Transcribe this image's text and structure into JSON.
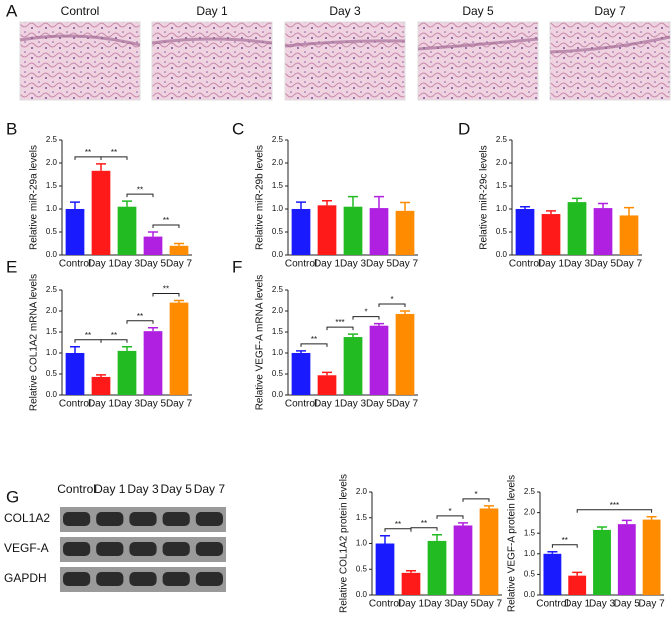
{
  "panel_labels": [
    "A",
    "B",
    "C",
    "D",
    "E",
    "F",
    "G"
  ],
  "histology": {
    "labels": [
      "Control",
      "Day 1",
      "Day 3",
      "Day 5",
      "Day 7"
    ]
  },
  "blot": {
    "header": [
      "Control",
      "Day 1",
      "Day 3",
      "Day 5",
      "Day 7"
    ],
    "rows": [
      "COL1A2",
      "VEGF-A",
      "GAPDH"
    ]
  },
  "chart_data": [
    {
      "type": "bar",
      "y_label": "Relative miR-29a levels",
      "categories": [
        "Control",
        "Day 1",
        "Day 3",
        "Day 5",
        "Day 7"
      ],
      "values": [
        1.0,
        1.83,
        1.05,
        0.4,
        0.2
      ],
      "errors": [
        0.15,
        0.15,
        0.12,
        0.1,
        0.05
      ],
      "colors": [
        "#1a1aff",
        "#ff1a1a",
        "#22bb22",
        "#b020e0",
        "#ff8c00"
      ],
      "ylim": [
        0,
        2.5
      ],
      "yticks": [
        {
          "value": 0,
          "label": "0.0"
        },
        {
          "value": 0.5,
          "label": "0.5"
        },
        {
          "value": 1,
          "label": "1.0"
        },
        {
          "value": 1.5,
          "label": "1.5"
        },
        {
          "value": 2,
          "label": "2.0"
        },
        {
          "value": 2.5,
          "label": "2.5"
        }
      ],
      "brackets": [
        {
          "between": [
            0,
            1
          ],
          "label": "**"
        },
        {
          "between": [
            1,
            2
          ],
          "label": "**"
        },
        {
          "between": [
            2,
            3
          ],
          "label": "**"
        },
        {
          "between": [
            3,
            4
          ],
          "label": "**"
        }
      ]
    },
    {
      "type": "bar",
      "y_label": "Relative miR-29b levels",
      "categories": [
        "Control",
        "Day 1",
        "Day 3",
        "Day 5",
        "Day 7"
      ],
      "values": [
        1.0,
        1.08,
        1.05,
        1.02,
        0.96
      ],
      "errors": [
        0.15,
        0.1,
        0.22,
        0.25,
        0.18
      ],
      "colors": [
        "#1a1aff",
        "#ff1a1a",
        "#22bb22",
        "#b020e0",
        "#ff8c00"
      ],
      "ylim": [
        0,
        2.5
      ],
      "yticks": [
        {
          "value": 0,
          "label": "0.0"
        },
        {
          "value": 0.5,
          "label": "0.5"
        },
        {
          "value": 1,
          "label": "1.0"
        },
        {
          "value": 1.5,
          "label": "1.5"
        },
        {
          "value": 2,
          "label": "2.0"
        },
        {
          "value": 2.5,
          "label": "2.5"
        }
      ],
      "brackets": []
    },
    {
      "type": "bar",
      "y_label": "Relative miR-29c levels",
      "categories": [
        "Control",
        "Day 1",
        "Day 3",
        "Day 5",
        "Day 7"
      ],
      "values": [
        1.0,
        0.89,
        1.15,
        1.02,
        0.86
      ],
      "errors": [
        0.05,
        0.07,
        0.08,
        0.1,
        0.17
      ],
      "colors": [
        "#1a1aff",
        "#ff1a1a",
        "#22bb22",
        "#b020e0",
        "#ff8c00"
      ],
      "ylim": [
        0,
        2.5
      ],
      "yticks": [
        {
          "value": 0,
          "label": "0.0"
        },
        {
          "value": 0.5,
          "label": "0.5"
        },
        {
          "value": 1,
          "label": "1.0"
        },
        {
          "value": 1.5,
          "label": "1.5"
        },
        {
          "value": 2,
          "label": "2.0"
        },
        {
          "value": 2.5,
          "label": "2.5"
        }
      ],
      "brackets": []
    },
    {
      "type": "bar",
      "y_label": "Relative COL1A2 mRNA levels",
      "categories": [
        "Control",
        "Day 1",
        "Day 3",
        "Day 5",
        "Day 7"
      ],
      "values": [
        1.0,
        0.43,
        1.05,
        1.52,
        2.2
      ],
      "errors": [
        0.15,
        0.05,
        0.1,
        0.08,
        0.05
      ],
      "colors": [
        "#1a1aff",
        "#ff1a1a",
        "#22bb22",
        "#b020e0",
        "#ff8c00"
      ],
      "ylim": [
        0,
        2.5
      ],
      "yticks": [
        {
          "value": 0,
          "label": "0.0"
        },
        {
          "value": 0.5,
          "label": "0.5"
        },
        {
          "value": 1,
          "label": "1.0"
        },
        {
          "value": 1.5,
          "label": "1.5"
        },
        {
          "value": 2,
          "label": "2.0"
        },
        {
          "value": 2.5,
          "label": "2.5"
        }
      ],
      "brackets": [
        {
          "between": [
            0,
            1
          ],
          "label": "**"
        },
        {
          "between": [
            1,
            2
          ],
          "label": "**"
        },
        {
          "between": [
            2,
            3
          ],
          "label": "**"
        },
        {
          "between": [
            3,
            4
          ],
          "label": "**"
        }
      ]
    },
    {
      "type": "bar",
      "y_label": "Relative VEGF-A mRNA levels",
      "categories": [
        "Control",
        "Day 1",
        "Day 3",
        "Day 5",
        "Day 7"
      ],
      "values": [
        1.0,
        0.47,
        1.38,
        1.65,
        1.93
      ],
      "errors": [
        0.05,
        0.07,
        0.07,
        0.05,
        0.07
      ],
      "colors": [
        "#1a1aff",
        "#ff1a1a",
        "#22bb22",
        "#b020e0",
        "#ff8c00"
      ],
      "ylim": [
        0,
        2.5
      ],
      "yticks": [
        {
          "value": 0,
          "label": "0.0"
        },
        {
          "value": 0.5,
          "label": "0.5"
        },
        {
          "value": 1,
          "label": "1.0"
        },
        {
          "value": 1.5,
          "label": "1.5"
        },
        {
          "value": 2,
          "label": "2.0"
        },
        {
          "value": 2.5,
          "label": "2.5"
        }
      ],
      "brackets": [
        {
          "between": [
            0,
            1
          ],
          "label": "**"
        },
        {
          "between": [
            1,
            2
          ],
          "label": "***"
        },
        {
          "between": [
            2,
            3
          ],
          "label": "*"
        },
        {
          "between": [
            3,
            4
          ],
          "label": "*"
        }
      ]
    },
    {
      "type": "bar",
      "y_label": "Relative COL1A2 protein levels",
      "categories": [
        "Control",
        "Day 1",
        "Day 3",
        "Day 5",
        "Day 7"
      ],
      "values": [
        1.0,
        0.43,
        1.05,
        1.35,
        1.68
      ],
      "errors": [
        0.15,
        0.04,
        0.12,
        0.05,
        0.05
      ],
      "colors": [
        "#1a1aff",
        "#ff1a1a",
        "#22bb22",
        "#b020e0",
        "#ff8c00"
      ],
      "ylim": [
        0,
        2
      ],
      "yticks": [
        {
          "value": 0,
          "label": "0.0"
        },
        {
          "value": 0.5,
          "label": "0.5"
        },
        {
          "value": 1,
          "label": "1.0"
        },
        {
          "value": 1.5,
          "label": "1.5"
        },
        {
          "value": 2,
          "label": "2.0"
        }
      ],
      "brackets": [
        {
          "between": [
            0,
            1
          ],
          "label": "**"
        },
        {
          "between": [
            1,
            2
          ],
          "label": "**"
        },
        {
          "between": [
            2,
            3
          ],
          "label": "*"
        },
        {
          "between": [
            3,
            4
          ],
          "label": "*"
        }
      ]
    },
    {
      "type": "bar",
      "y_label": "Relative VEGF-A protein levels",
      "categories": [
        "Control",
        "Day 1",
        "Day 3",
        "Day 5",
        "Day 7"
      ],
      "values": [
        1.0,
        0.47,
        1.58,
        1.72,
        1.83
      ],
      "errors": [
        0.05,
        0.08,
        0.07,
        0.09,
        0.07
      ],
      "colors": [
        "#1a1aff",
        "#ff1a1a",
        "#22bb22",
        "#b020e0",
        "#ff8c00"
      ],
      "ylim": [
        0,
        2.5
      ],
      "yticks": [
        {
          "value": 0,
          "label": "0.0"
        },
        {
          "value": 0.5,
          "label": "0.5"
        },
        {
          "value": 1,
          "label": "1.0"
        },
        {
          "value": 1.5,
          "label": "1.5"
        },
        {
          "value": 2,
          "label": "2.0"
        },
        {
          "value": 2.5,
          "label": "2.5"
        }
      ],
      "brackets": [
        {
          "between": [
            0,
            1
          ],
          "label": "**"
        },
        {
          "between": [
            1,
            4
          ],
          "label": "***"
        }
      ]
    }
  ]
}
